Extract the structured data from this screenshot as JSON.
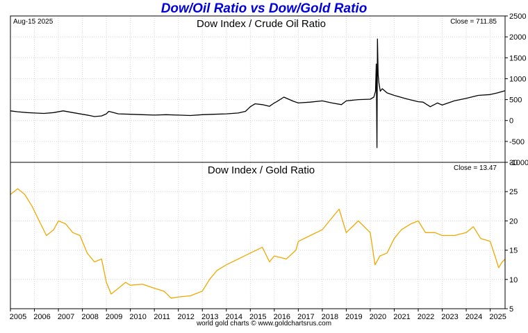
{
  "page": {
    "title": "Dow/Oil Ratio vs Dow/Gold Ratio",
    "date_label": "Aug-15  2025",
    "footer": "world gold charts © www.goldchartsrus.com",
    "colors": {
      "title": "#0000dd",
      "oil_line": "#000000",
      "gold_line": "#f0a800",
      "grid": "#d4d4d4",
      "frame": "#000000"
    }
  },
  "chart_data": [
    {
      "type": "line",
      "title": "Dow Index / Crude Oil Ratio",
      "close_label": "Close = 711.85",
      "ylim": [
        -1000,
        2500
      ],
      "yticks": [
        -1000,
        -500,
        0,
        500,
        1000,
        1500,
        2000,
        2500
      ],
      "xlim": [
        2005.0,
        2025.62
      ],
      "xticks": [
        "2005",
        "2006",
        "2007",
        "2008",
        "2009",
        "2010",
        "2011",
        "2012",
        "2013",
        "2014",
        "2015",
        "2016",
        "2017",
        "2018",
        "2019",
        "2020",
        "2021",
        "2022",
        "2023",
        "2024",
        "2025"
      ],
      "grid": true,
      "series": [
        {
          "x": [
            2005.0,
            2005.3,
            2005.7,
            2006.0,
            2006.4,
            2006.8,
            2007.2,
            2007.6,
            2008.0,
            2008.3,
            2008.5,
            2008.8,
            2009.0,
            2009.1,
            2009.5,
            2010.0,
            2010.5,
            2011.0,
            2011.5,
            2012.0,
            2012.5,
            2013.0,
            2013.5,
            2014.0,
            2014.5,
            2014.8,
            2015.0,
            2015.2,
            2015.5,
            2015.8,
            2016.0,
            2016.1,
            2016.4,
            2016.8,
            2017.0,
            2017.5,
            2018.0,
            2018.4,
            2018.8,
            2019.0,
            2019.5,
            2020.0,
            2020.15,
            2020.22,
            2020.25,
            2020.28,
            2020.3,
            2020.33,
            2020.36,
            2020.42,
            2020.5,
            2020.7,
            2021.0,
            2021.5,
            2022.0,
            2022.2,
            2022.5,
            2022.8,
            2023.0,
            2023.5,
            2024.0,
            2024.5,
            2025.0,
            2025.3,
            2025.62
          ],
          "y": [
            230,
            210,
            190,
            180,
            170,
            190,
            230,
            190,
            150,
            120,
            95,
            110,
            160,
            220,
            160,
            150,
            140,
            130,
            140,
            130,
            120,
            140,
            150,
            160,
            180,
            220,
            330,
            400,
            380,
            340,
            420,
            450,
            560,
            460,
            420,
            440,
            470,
            420,
            380,
            470,
            500,
            510,
            560,
            700,
            1350,
            -650,
            1950,
            1100,
            900,
            700,
            760,
            660,
            600,
            520,
            450,
            440,
            330,
            420,
            370,
            470,
            530,
            600,
            620,
            660,
            711.85
          ]
        }
      ]
    },
    {
      "type": "line",
      "title": "Dow Index / Gold Ratio",
      "close_label": "Close = 13.47",
      "ylim": [
        5,
        30
      ],
      "yticks": [
        5,
        10,
        15,
        20,
        25,
        30
      ],
      "xlim": [
        2005.0,
        2025.62
      ],
      "xticks": [
        "2005",
        "2006",
        "2007",
        "2008",
        "2009",
        "2010",
        "2011",
        "2012",
        "2013",
        "2014",
        "2015",
        "2016",
        "2017",
        "2018",
        "2019",
        "2020",
        "2021",
        "2022",
        "2023",
        "2024",
        "2025"
      ],
      "grid": true,
      "series": [
        {
          "x": [
            2005.0,
            2005.3,
            2005.6,
            2005.9,
            2006.2,
            2006.5,
            2006.8,
            2007.0,
            2007.3,
            2007.6,
            2007.9,
            2008.2,
            2008.5,
            2008.8,
            2009.0,
            2009.2,
            2009.5,
            2009.8,
            2010.0,
            2010.5,
            2011.0,
            2011.4,
            2011.7,
            2012.0,
            2012.5,
            2013.0,
            2013.3,
            2013.6,
            2014.0,
            2014.5,
            2015.0,
            2015.5,
            2015.8,
            2016.0,
            2016.5,
            2016.9,
            2017.0,
            2017.5,
            2018.0,
            2018.3,
            2018.7,
            2019.0,
            2019.5,
            2020.0,
            2020.2,
            2020.4,
            2020.7,
            2021.0,
            2021.3,
            2021.7,
            2022.0,
            2022.3,
            2022.7,
            2023.0,
            2023.5,
            2024.0,
            2024.3,
            2024.6,
            2025.0,
            2025.2,
            2025.35,
            2025.5,
            2025.62
          ],
          "y": [
            24.5,
            25.5,
            24.5,
            22.5,
            20,
            17.5,
            18.5,
            20,
            19.5,
            18,
            17.5,
            14.5,
            13,
            13.5,
            9.5,
            7.5,
            8.5,
            9.5,
            9,
            9.2,
            8.5,
            8,
            6.8,
            7,
            7.2,
            8,
            10,
            11.5,
            12.5,
            13.5,
            14.5,
            15.5,
            13,
            14,
            13.5,
            15,
            16.5,
            17.5,
            18.5,
            20,
            22,
            18,
            20,
            18,
            12.5,
            14,
            14.5,
            17,
            18.5,
            19.5,
            20,
            18,
            18,
            17.5,
            17.5,
            18,
            19,
            17,
            16.5,
            14,
            12,
            13,
            13.47
          ]
        }
      ]
    }
  ]
}
